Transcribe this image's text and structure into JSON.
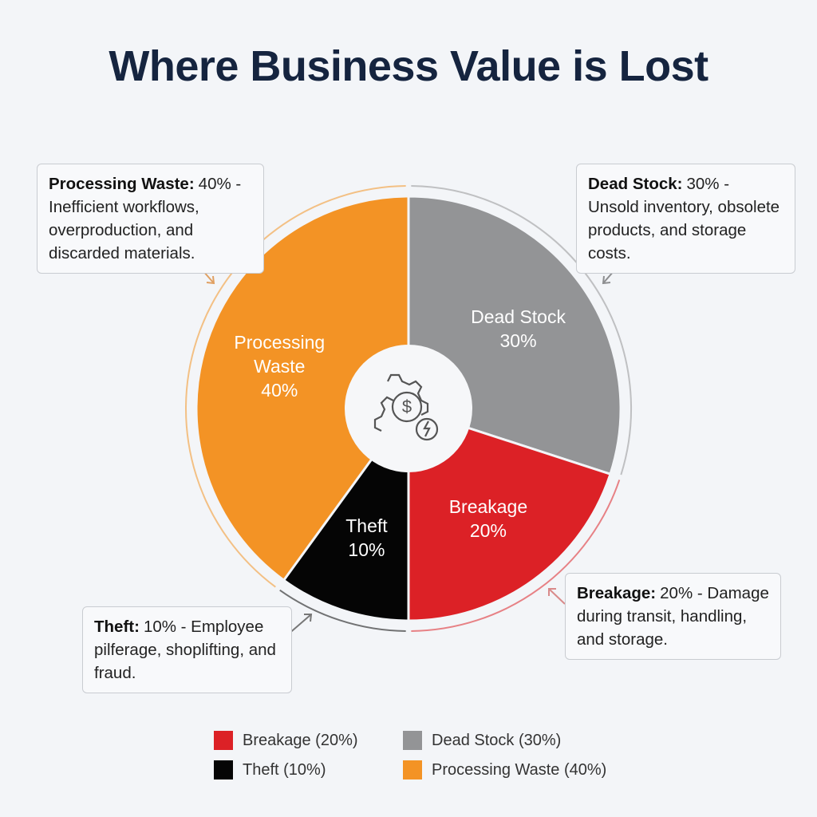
{
  "chart_data": {
    "type": "pie",
    "title": "Where Business Value is Lost",
    "categories": [
      "Dead Stock",
      "Breakage",
      "Theft",
      "Processing Waste"
    ],
    "values": [
      30,
      20,
      10,
      40
    ],
    "value_labels": [
      "30%",
      "20%",
      "10%",
      "40%"
    ],
    "colors": [
      "#939496",
      "#dc2126",
      "#050505",
      "#f39325"
    ],
    "callouts": [
      {
        "label": "Dead Stock:",
        "text": "30% - Unsold inventory, obsolete products, and storage costs."
      },
      {
        "label": "Breakage:",
        "text": "20% - Damage during transit, handling, and storage."
      },
      {
        "label": "Theft:",
        "text": "10% - Employee pilferage, shoplifting, and fraud."
      },
      {
        "label": "Processing Waste:",
        "text": "40% - Inefficient workflows, overproduction, and discarded materials."
      }
    ],
    "legend": [
      {
        "label": "Breakage (20%)",
        "color": "#dc2126"
      },
      {
        "label": "Dead Stock (30%)",
        "color": "#939496"
      },
      {
        "label": "Theft (10%)",
        "color": "#050505"
      },
      {
        "label": "Processing Waste (40%)",
        "color": "#f39325"
      }
    ]
  }
}
